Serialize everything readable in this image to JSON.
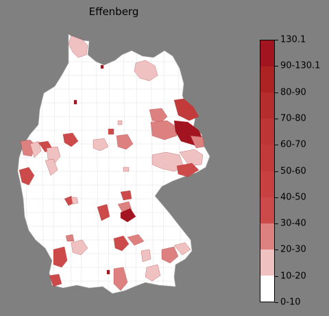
{
  "title": "Effenberg",
  "map": {
    "country": "Germany",
    "land_color": "#ffffff",
    "border_color": "#c8c8c8",
    "background_color": "#808080"
  },
  "legend": {
    "bins": [
      {
        "label": "0-10",
        "color": "#ffffff"
      },
      {
        "label": "10-20",
        "color": "#efc1c1"
      },
      {
        "label": "20-30",
        "color": "#dc8080"
      },
      {
        "label": "30-40",
        "color": "#cd4a4a"
      },
      {
        "label": "40-50",
        "color": "#c84040"
      },
      {
        "label": "50-60",
        "color": "#c23a3a"
      },
      {
        "label": "60-70",
        "color": "#bd3535"
      },
      {
        "label": "70-80",
        "color": "#b52d2d"
      },
      {
        "label": "80-90",
        "color": "#ad2222"
      },
      {
        "label": "90-130.1",
        "color": "#a11420"
      }
    ],
    "max_label": "130.1"
  }
}
